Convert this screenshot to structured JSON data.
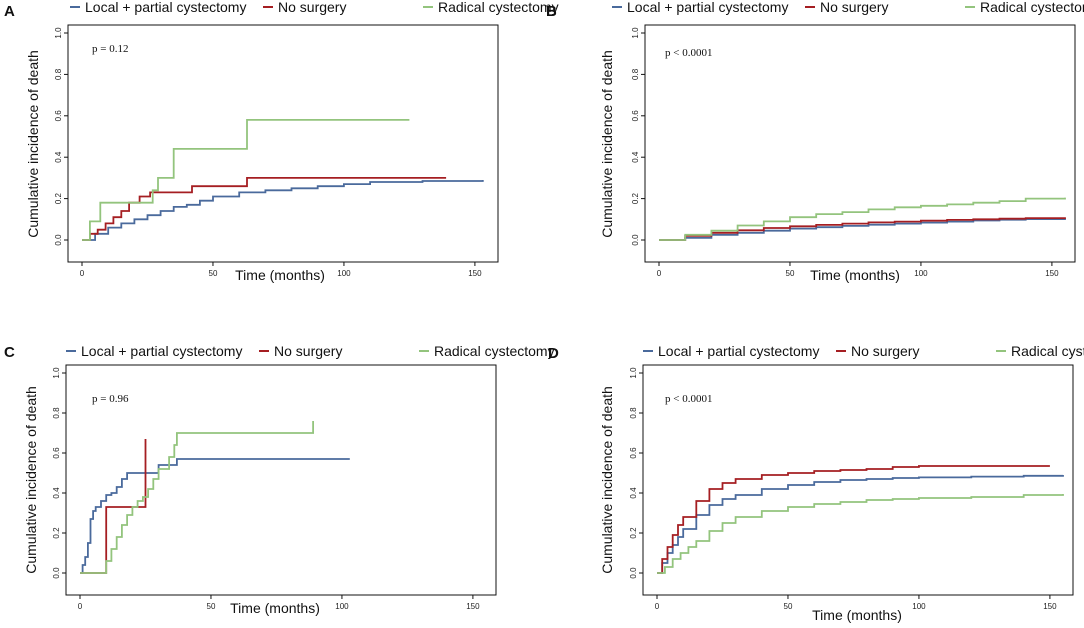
{
  "colors": {
    "local": "#4a6a9c",
    "none": "#a51e22",
    "radical": "#93c47d"
  },
  "chart_data": [
    {
      "type": "line",
      "panel": "A",
      "xlabel": "Time (months)",
      "ylabel": "Cumulative incidence of death",
      "xlim": [
        0,
        155
      ],
      "ylim": [
        0,
        1
      ],
      "xticks": [
        0,
        50,
        100,
        150
      ],
      "yticks": [
        0.0,
        0.2,
        0.4,
        0.6,
        0.8,
        1.0
      ],
      "ytick_labels": [
        "0.0",
        "0.2",
        "0.4",
        "0.6",
        "0.8",
        "1.0"
      ],
      "pvalue": "p = 0.12",
      "legend": [
        "Local + partial cystectomy",
        "No surgery",
        "Radical cystectomy"
      ],
      "series": [
        {
          "name": "Local + partial cystectomy",
          "color_key": "local",
          "x": [
            0,
            5,
            10,
            15,
            20,
            25,
            30,
            35,
            40,
            45,
            50,
            60,
            70,
            80,
            90,
            100,
            110,
            120,
            130,
            140,
            153
          ],
          "y": [
            0,
            0.03,
            0.06,
            0.08,
            0.1,
            0.12,
            0.14,
            0.16,
            0.17,
            0.19,
            0.21,
            0.23,
            0.24,
            0.25,
            0.26,
            0.27,
            0.28,
            0.28,
            0.285,
            0.285,
            0.29
          ]
        },
        {
          "name": "No surgery",
          "color_key": "none",
          "x": [
            0,
            3,
            6,
            9,
            12,
            15,
            18,
            22,
            26,
            42,
            63,
            139
          ],
          "y": [
            0,
            0.03,
            0.05,
            0.08,
            0.11,
            0.14,
            0.18,
            0.21,
            0.23,
            0.26,
            0.3,
            0.3
          ]
        },
        {
          "name": "Radical cystectomy",
          "color_key": "radical",
          "x": [
            0,
            3,
            7,
            27,
            29,
            35,
            63,
            125
          ],
          "y": [
            0,
            0.09,
            0.18,
            0.24,
            0.3,
            0.44,
            0.58,
            0.58
          ]
        }
      ]
    },
    {
      "type": "line",
      "panel": "B",
      "xlabel": "Time (months)",
      "ylabel": "Cumulative incidence of death",
      "xlim": [
        0,
        155
      ],
      "ylim": [
        0,
        1
      ],
      "xticks": [
        0,
        50,
        100,
        150
      ],
      "yticks": [
        0.0,
        0.2,
        0.4,
        0.6,
        0.8,
        1.0
      ],
      "ytick_labels": [
        "0.0",
        "0.2",
        "0.4",
        "0.6",
        "0.8",
        "1.0"
      ],
      "pvalue": "p < 0.0001",
      "legend": [
        "Local + partial cystectomy",
        "No surgery",
        "Radical cystectomy"
      ],
      "series": [
        {
          "name": "Local + partial cystectomy",
          "color_key": "local",
          "x": [
            0,
            10,
            20,
            30,
            40,
            50,
            60,
            70,
            80,
            90,
            100,
            110,
            120,
            130,
            140,
            155
          ],
          "y": [
            0,
            0.01,
            0.025,
            0.035,
            0.045,
            0.055,
            0.062,
            0.068,
            0.074,
            0.079,
            0.084,
            0.089,
            0.094,
            0.098,
            0.101,
            0.105
          ]
        },
        {
          "name": "No surgery",
          "color_key": "none",
          "x": [
            0,
            10,
            20,
            30,
            40,
            50,
            60,
            70,
            80,
            90,
            100,
            110,
            120,
            130,
            140,
            155
          ],
          "y": [
            0,
            0.02,
            0.035,
            0.047,
            0.058,
            0.066,
            0.073,
            0.079,
            0.085,
            0.089,
            0.093,
            0.097,
            0.1,
            0.103,
            0.106,
            0.11
          ]
        },
        {
          "name": "Radical cystectomy",
          "color_key": "radical",
          "x": [
            0,
            10,
            20,
            30,
            40,
            50,
            60,
            70,
            80,
            90,
            100,
            110,
            120,
            130,
            140,
            155
          ],
          "y": [
            0,
            0.025,
            0.045,
            0.07,
            0.09,
            0.11,
            0.125,
            0.135,
            0.148,
            0.158,
            0.165,
            0.172,
            0.18,
            0.188,
            0.2,
            0.205
          ]
        }
      ]
    },
    {
      "type": "line",
      "panel": "C",
      "xlabel": "Time (months)",
      "ylabel": "Cumulative incidence of death",
      "xlim": [
        0,
        155
      ],
      "ylim": [
        0,
        1
      ],
      "xticks": [
        0,
        50,
        100,
        150
      ],
      "yticks": [
        0.0,
        0.2,
        0.4,
        0.6,
        0.8,
        1.0
      ],
      "ytick_labels": [
        "0.0",
        "0.2",
        "0.4",
        "0.6",
        "0.8",
        "1.0"
      ],
      "pvalue": "p = 0.96",
      "legend": [
        "Local + partial cystectomy",
        "No surgery",
        "Radical cystectomy"
      ],
      "series": [
        {
          "name": "Local + partial cystectomy",
          "color_key": "local",
          "x": [
            0,
            1,
            2,
            3,
            4,
            5,
            6,
            8,
            10,
            12,
            14,
            16,
            18,
            20,
            26,
            30,
            37,
            103
          ],
          "y": [
            0,
            0.04,
            0.08,
            0.15,
            0.27,
            0.31,
            0.33,
            0.36,
            0.39,
            0.4,
            0.43,
            0.47,
            0.5,
            0.5,
            0.5,
            0.54,
            0.57,
            0.57
          ]
        },
        {
          "name": "No surgery",
          "color_key": "none",
          "x": [
            0,
            10,
            25,
            25
          ],
          "y": [
            0,
            0.33,
            0.33,
            0.67
          ]
        },
        {
          "name": "Radical cystectomy",
          "color_key": "radical",
          "x": [
            0,
            10,
            12,
            14,
            16,
            18,
            20,
            22,
            24,
            26,
            28,
            30,
            34,
            36,
            37,
            89,
            89
          ],
          "y": [
            0,
            0.06,
            0.12,
            0.18,
            0.24,
            0.29,
            0.33,
            0.36,
            0.38,
            0.42,
            0.47,
            0.52,
            0.58,
            0.64,
            0.7,
            0.7,
            0.76
          ]
        }
      ]
    },
    {
      "type": "line",
      "panel": "D",
      "xlabel": "Time (months)",
      "ylabel": "Cumulative incidence of death",
      "xlim": [
        0,
        155
      ],
      "ylim": [
        0,
        1
      ],
      "xticks": [
        0,
        50,
        100,
        150
      ],
      "yticks": [
        0.0,
        0.2,
        0.4,
        0.6,
        0.8,
        1.0
      ],
      "ytick_labels": [
        "0.0",
        "0.2",
        "0.4",
        "0.6",
        "0.8",
        "1.0"
      ],
      "pvalue": "p < 0.0001",
      "legend": [
        "Local + partial cystectomy",
        "No surgery",
        "Radical cystectomy"
      ],
      "series": [
        {
          "name": "Local + partial cystectomy",
          "color_key": "local",
          "x": [
            0,
            2,
            4,
            6,
            8,
            10,
            15,
            20,
            25,
            30,
            40,
            50,
            60,
            70,
            80,
            90,
            100,
            120,
            140,
            155
          ],
          "y": [
            0,
            0.05,
            0.1,
            0.14,
            0.18,
            0.22,
            0.29,
            0.34,
            0.37,
            0.39,
            0.42,
            0.44,
            0.455,
            0.465,
            0.47,
            0.475,
            0.478,
            0.482,
            0.486,
            0.49
          ]
        },
        {
          "name": "No surgery",
          "color_key": "none",
          "x": [
            0,
            2,
            4,
            6,
            8,
            10,
            15,
            20,
            25,
            30,
            40,
            50,
            60,
            70,
            80,
            90,
            100,
            120,
            140,
            150
          ],
          "y": [
            0,
            0.07,
            0.13,
            0.19,
            0.24,
            0.28,
            0.36,
            0.42,
            0.45,
            0.47,
            0.49,
            0.5,
            0.51,
            0.515,
            0.52,
            0.53,
            0.535,
            0.535,
            0.535,
            0.535
          ]
        },
        {
          "name": "Radical cystectomy",
          "color_key": "radical",
          "x": [
            0,
            3,
            6,
            9,
            12,
            15,
            20,
            25,
            30,
            40,
            50,
            60,
            70,
            80,
            90,
            100,
            120,
            140,
            155
          ],
          "y": [
            0,
            0.03,
            0.07,
            0.1,
            0.13,
            0.16,
            0.21,
            0.25,
            0.28,
            0.31,
            0.33,
            0.345,
            0.355,
            0.365,
            0.37,
            0.375,
            0.38,
            0.39,
            0.395
          ]
        }
      ]
    }
  ]
}
